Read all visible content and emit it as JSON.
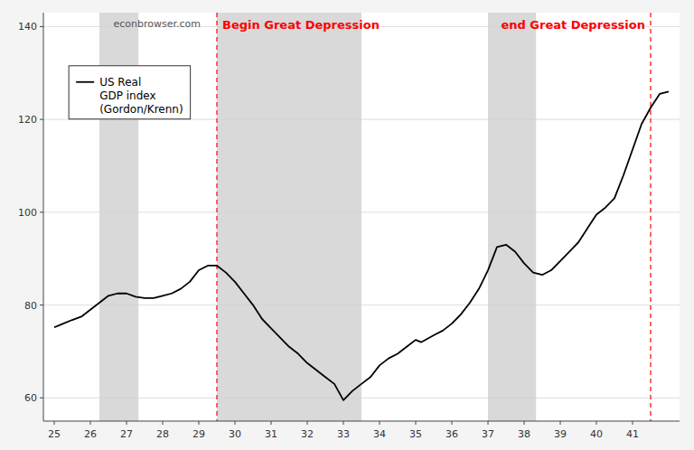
{
  "chart_data": {
    "type": "line",
    "watermark": "econbrowser.com",
    "x": [
      25.0,
      25.1,
      25.25,
      25.5,
      25.75,
      26.0,
      26.25,
      26.5,
      26.75,
      27.0,
      27.25,
      27.5,
      27.75,
      28.0,
      28.25,
      28.5,
      28.75,
      29.0,
      29.25,
      29.5,
      29.75,
      30.0,
      30.25,
      30.5,
      30.75,
      31.0,
      31.25,
      31.5,
      31.75,
      32.0,
      32.25,
      32.5,
      32.75,
      33.0,
      33.25,
      33.5,
      33.75,
      34.0,
      34.25,
      34.5,
      34.75,
      35.0,
      35.15,
      35.5,
      35.75,
      36.0,
      36.25,
      36.5,
      36.75,
      37.0,
      37.25,
      37.5,
      37.75,
      38.0,
      38.25,
      38.5,
      38.75,
      39.0,
      39.25,
      39.5,
      39.75,
      40.0,
      40.25,
      40.5,
      40.75,
      41.0,
      41.25,
      41.5,
      41.75,
      42.0
    ],
    "series": [
      {
        "name": "US Real\nGDP index\n(Gordon/Krenn)",
        "color": "#000000",
        "values": [
          75.2,
          75.5,
          76.0,
          76.8,
          77.5,
          79.0,
          80.5,
          82.0,
          82.5,
          82.5,
          81.8,
          81.5,
          81.5,
          82.0,
          82.5,
          83.5,
          85.0,
          87.5,
          88.5,
          88.5,
          87.0,
          85.0,
          82.5,
          80.0,
          77.0,
          75.0,
          73.0,
          71.0,
          69.5,
          67.5,
          66.0,
          64.5,
          63.0,
          59.5,
          61.5,
          63.0,
          64.5,
          67.0,
          68.5,
          69.5,
          71.0,
          72.5,
          72.0,
          73.5,
          74.5,
          76.0,
          78.0,
          80.5,
          83.5,
          87.5,
          92.5,
          93.0,
          91.5,
          89.0,
          87.0,
          86.5,
          87.5,
          89.5,
          91.5,
          93.5,
          96.5,
          99.5,
          101.0,
          103.0,
          108.0,
          113.5,
          119.0,
          122.5,
          125.5,
          126.0
        ]
      }
    ],
    "shaded_ranges": [
      [
        26.25,
        27.33
      ],
      [
        29.5,
        33.5
      ],
      [
        37.0,
        38.33
      ]
    ],
    "vlines": [
      {
        "x": 29.5,
        "text": "Begin Great Depression",
        "color": "red"
      },
      {
        "x": 41.5,
        "text": "end Great Depression",
        "color": "red"
      }
    ],
    "xlim": [
      24.7,
      42.3
    ],
    "ylim": [
      55,
      143
    ],
    "xticks": [
      25,
      26,
      27,
      28,
      29,
      30,
      31,
      32,
      33,
      34,
      35,
      36,
      37,
      38,
      39,
      40,
      41
    ],
    "yticks": [
      60,
      80,
      100,
      120,
      140
    ],
    "grid": true,
    "legend": "upper left"
  }
}
